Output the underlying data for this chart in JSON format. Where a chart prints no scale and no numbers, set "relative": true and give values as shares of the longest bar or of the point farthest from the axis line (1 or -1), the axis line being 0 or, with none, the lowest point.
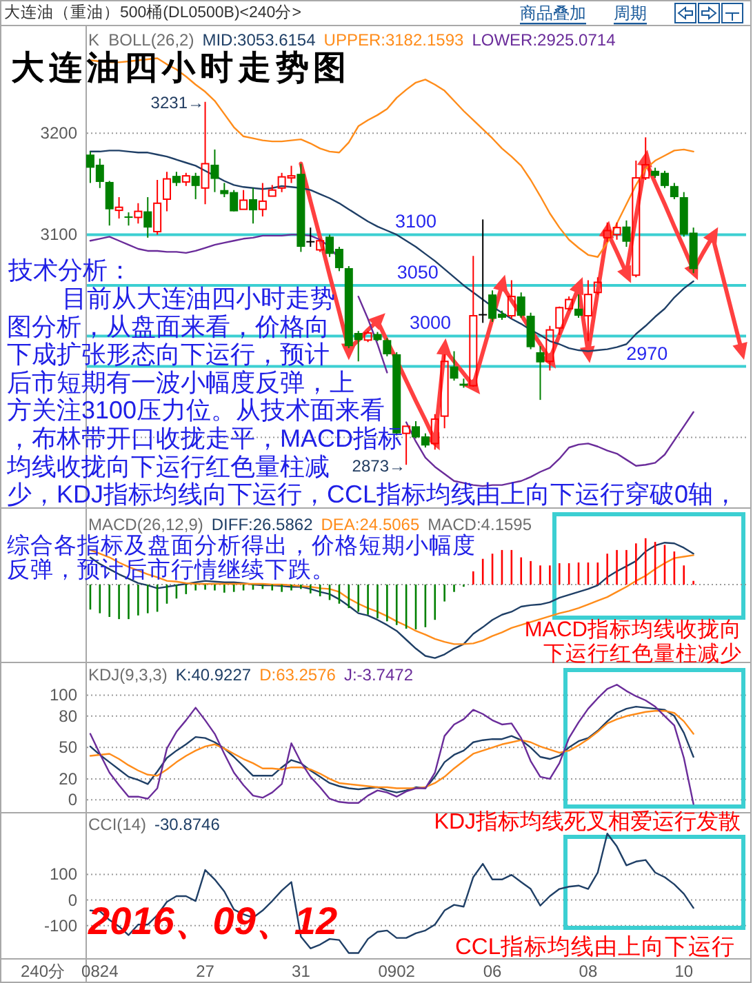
{
  "chart_data": [
    {
      "type": "candlestick",
      "title": "大连油（重油）500桶(DL0500B)<240分>",
      "subtitle": "大连油四小时走势图",
      "legend_title": "K  BOLL(26,2)",
      "legend": "top left",
      "tick_labels": "y",
      "grid": "y",
      "categories": [
        null,
        null,
        null,
        null,
        null,
        null,
        null,
        null,
        null,
        null,
        null,
        null,
        null,
        null,
        null,
        null,
        null,
        null,
        null,
        null,
        null,
        null,
        null,
        null,
        null,
        null,
        null,
        null,
        null,
        null,
        null,
        null,
        null,
        null,
        null,
        null,
        null,
        null,
        null,
        null,
        null,
        null,
        null,
        null,
        null,
        null,
        null,
        null,
        null,
        null,
        null,
        null,
        null,
        null,
        null,
        null,
        null,
        null,
        null,
        null,
        null,
        null,
        null,
        null,
        null,
        null,
        null,
        null,
        null
      ],
      "ylim": [
        2831,
        3307
      ],
      "yticks": [
        {
          "value": 2900,
          "label": null
        },
        {
          "value": 3000,
          "label": null
        },
        3100,
        3200
      ],
      "ohlc": [
        [
          3179,
          3182,
          3151,
          3166
        ],
        [
          3169,
          3175,
          3146,
          3152
        ],
        [
          3152,
          3153,
          3109,
          3125
        ],
        [
          3124,
          3137,
          3116,
          3127
        ],
        [
          3118,
          3122,
          3109,
          3117
        ],
        [
          3117,
          3131,
          3111,
          3123
        ],
        [
          3123,
          3137,
          3097,
          3107
        ],
        [
          3103,
          3154,
          3100,
          3131
        ],
        [
          3135,
          3162,
          3123,
          3155
        ],
        [
          3158,
          3162,
          3148,
          3151
        ],
        [
          3152,
          3161,
          3148,
          3158
        ],
        [
          3158,
          3161,
          3135,
          3148
        ],
        [
          3146,
          3231,
          3130,
          3170
        ],
        [
          3169,
          3184,
          3142,
          3155
        ],
        [
          3144,
          3151,
          3137,
          3140
        ],
        [
          3142,
          3144,
          3123,
          3123
        ],
        [
          3125,
          3144,
          3125,
          3134
        ],
        [
          3135,
          3146,
          3111,
          3124
        ],
        [
          3125,
          3151,
          3118,
          3133
        ],
        [
          3138,
          3149,
          3138,
          3144
        ],
        [
          3146,
          3161,
          3142,
          3157
        ],
        [
          3156,
          3168,
          3151,
          3158
        ],
        [
          3160,
          3170,
          3083,
          3088
        ],
        [
          3093,
          3107,
          3088,
          3093
        ],
        [
          3085,
          3096,
          3083,
          3094
        ],
        [
          3098,
          3100,
          3078,
          3081
        ],
        [
          3086,
          3088,
          3064,
          3067
        ],
        [
          3067,
          3069,
          2988,
          2990
        ],
        [
          3003,
          3005,
          2975,
          2996
        ],
        [
          2996,
          3005,
          2994,
          3003
        ],
        [
          3002,
          3004,
          2995,
          2996
        ],
        [
          2996,
          2998,
          2980,
          2982
        ],
        [
          2982,
          2984,
          2902,
          2904
        ],
        [
          2904,
          2911,
          2873,
          2911
        ],
        [
          2911,
          2916,
          2899,
          2900
        ],
        [
          2901,
          2904,
          2890,
          2892
        ],
        [
          2894,
          2923,
          2888,
          2918
        ],
        [
          2921,
          2982,
          2909,
          2975
        ],
        [
          2970,
          2985,
          2956,
          2958
        ],
        [
          2953,
          2958,
          2949,
          2951
        ],
        [
          2951,
          3079,
          2950,
          3020
        ],
        [
          3021,
          3115,
          3013,
          3021
        ],
        [
          3041,
          3045,
          3014,
          3017
        ],
        [
          3022,
          3025,
          3016,
          3018
        ],
        [
          3020,
          3055,
          3017,
          3039
        ],
        [
          3039,
          3043,
          3018,
          3020
        ],
        [
          3020,
          3023,
          2987,
          2989
        ],
        [
          2984,
          2990,
          2937,
          2974
        ],
        [
          2975,
          3010,
          2966,
          3006
        ],
        [
          3008,
          3029,
          3001,
          3028
        ],
        [
          3027,
          3039,
          3025,
          3036
        ],
        [
          3027,
          3041,
          3018,
          3020
        ],
        [
          3020,
          3055,
          2995,
          3041
        ],
        [
          3043,
          3058,
          3041,
          3053
        ],
        [
          3097,
          3112,
          3093,
          3104
        ],
        [
          3100,
          3112,
          3095,
          3107
        ],
        [
          3108,
          3114,
          3088,
          3093
        ],
        [
          3060,
          3173,
          3058,
          3156
        ],
        [
          3156,
          3196,
          3154,
          3169
        ],
        [
          3163,
          3166,
          3156,
          3158
        ],
        [
          3161,
          3163,
          3146,
          3148
        ],
        [
          3148,
          3151,
          3135,
          3137
        ],
        [
          3137,
          3142,
          3098,
          3100
        ],
        [
          3102,
          3107,
          3062,
          3066
        ],
        null,
        null,
        null,
        null,
        null
      ],
      "colors": [
        "#008000",
        "#008000",
        "#008000",
        "#ff0000",
        "#008000",
        "#ff0000",
        "#008000",
        "#ff0000",
        "#ff0000",
        "#008000",
        "#ff0000",
        "#008000",
        "#ff0000",
        "#008000",
        "#008000",
        "#008000",
        "#ff0000",
        "#008000",
        "#ff0000",
        "#ff0000",
        "#ff0000",
        "#ff0000",
        "#008000",
        "#000000",
        "#ff0000",
        "#008000",
        "#008000",
        "#008000",
        "#008000",
        "#ff0000",
        "#008000",
        "#008000",
        "#008000",
        "#ff0000",
        "#008000",
        "#008000",
        "#ff0000",
        "#ff0000",
        "#008000",
        "#008000",
        "#ff0000",
        "#000000",
        "#008000",
        "#008000",
        "#ff0000",
        "#008000",
        "#008000",
        "#008000",
        "#ff0000",
        "#ff0000",
        "#ff0000",
        "#008000",
        "#ff0000",
        "#ff0000",
        "#ff0000",
        "#ff0000",
        "#008000",
        "#ff0000",
        "#ff0000",
        "#008000",
        "#008000",
        "#008000",
        "#008000",
        "#008000",
        null,
        null,
        null,
        null,
        null
      ],
      "series": [
        {
          "type": "line",
          "color": "#ff4040",
          "values": [
            null,
            null,
            null,
            null,
            null,
            null,
            null,
            null,
            null,
            null,
            null,
            null,
            null,
            null,
            null,
            null,
            null,
            null,
            null,
            null,
            null,
            null,
            3170,
            3133,
            3097,
            3060,
            3024,
            2987,
            2996,
            3006,
            3015,
            2995,
            2976,
            2956,
            2936,
            2917,
            2897,
            2987,
            2975,
            2963,
            2951,
            2984,
            3017,
            3050,
            3035,
            3021,
            3006,
            2992,
            2977,
            3001,
            3024,
            3048,
            2984,
            3044,
            3103,
            3083,
            3062,
            3118,
            3173,
            3151,
            3130,
            3108,
            3087,
            3065,
            3082,
            3098,
            3061,
            3024,
            2987
          ]
        },
        {
          "type": "scatter",
          "color": "#ff4040",
          "marker": "triangle",
          "values": [
            null,
            null,
            null,
            null,
            null,
            null,
            null,
            null,
            null,
            null,
            null,
            null,
            null,
            null,
            null,
            null,
            null,
            null,
            null,
            null,
            null,
            null,
            null,
            null,
            null,
            null,
            null,
            2987,
            null,
            null,
            3015,
            null,
            null,
            null,
            null,
            null,
            2897,
            2987,
            null,
            null,
            2951,
            null,
            null,
            3050,
            null,
            null,
            null,
            null,
            2977,
            null,
            null,
            3048,
            2984,
            null,
            3103,
            null,
            3062,
            null,
            3173,
            null,
            null,
            null,
            null,
            3065,
            null,
            3098,
            null,
            null,
            2987
          ]
        },
        {
          "name": "MID:3053.6154",
          "type": "line",
          "color": "#1f3f66",
          "values": [
            3182,
            3182,
            3183,
            3183,
            3182,
            3181,
            3181,
            3179,
            3177,
            3174,
            3171,
            3168,
            3163,
            3158,
            3153,
            3149,
            3147,
            3146,
            3145,
            3146,
            3148,
            3147,
            3146,
            3144,
            3140,
            3136,
            3131,
            3125,
            3119,
            3113,
            3108,
            3104,
            3100,
            3094,
            3088,
            3081,
            3074,
            3066,
            3058,
            3050,
            3043,
            3036,
            3029,
            3023,
            3017,
            3012,
            3006,
            3001,
            2995,
            2992,
            2988,
            2986,
            2985,
            2986,
            2987,
            2989,
            2992,
            3002,
            3010,
            3019,
            3027,
            3038,
            3047,
            3054,
            null,
            null,
            null,
            null,
            null
          ]
        },
        {
          "name": "UPPER:3182.1593",
          "type": "line",
          "color": "#ff8c1a",
          "values": [
            3272,
            3271,
            3270,
            3270,
            3271,
            3272,
            3273,
            3274,
            3268,
            3263,
            3256,
            3248,
            3241,
            3232,
            3219,
            3206,
            3197,
            3195,
            3193,
            3192,
            3192,
            3193,
            3194,
            3190,
            3185,
            3182,
            3181,
            3191,
            3207,
            3213,
            3218,
            3224,
            3235,
            3243,
            3250,
            3253,
            3248,
            3242,
            3232,
            3222,
            3213,
            3204,
            3195,
            3185,
            3177,
            3168,
            3154,
            3138,
            3121,
            3107,
            3095,
            3087,
            3080,
            3078,
            3092,
            3111,
            3130,
            3149,
            3165,
            3173,
            3178,
            3183,
            3184,
            3182,
            null,
            null,
            null,
            null,
            null
          ]
        },
        {
          "name": "LOWER:2925.0714",
          "type": "line",
          "color": "#6a2c9a",
          "values": [
            3094,
            3096,
            3098,
            3094,
            3090,
            3086,
            3084,
            3084,
            3083,
            3083,
            3082,
            3084,
            3087,
            3090,
            3092,
            3094,
            3096,
            3097,
            3099,
            3099,
            3099,
            3100,
            3100,
            3099,
            3095,
            3088,
            3076,
            null,
            3039,
            3017,
            2992,
            2964,
            null,
            2915,
            2896,
            2880,
            2871,
            2864,
            2857,
            2855,
            2853,
            2852,
            2853,
            2853,
            2855,
            2857,
            2861,
            2866,
            2870,
            2879,
            2890,
            2893,
            2894,
            2891,
            2887,
            2884,
            2878,
            2872,
            2873,
            2875,
            2883,
            2897,
            2911,
            2925,
            null,
            null,
            null,
            null,
            null
          ]
        }
      ],
      "ref_lines": [
        {
          "axis": "y",
          "value": 3100,
          "label": "3100",
          "color": "#3ccfd2"
        },
        {
          "axis": "y",
          "value": 3050,
          "label": "3050",
          "color": "#3ccfd2"
        },
        {
          "axis": "y",
          "value": 3000,
          "label": "3000",
          "color": "#3ccfd2"
        },
        {
          "axis": "y",
          "value": 2970,
          "label": "2970",
          "color": "#3ccfd2"
        }
      ],
      "annotations": [
        "商品叠加",
        "周期",
        "3231→",
        "2873→",
        "技术分析：",
        "目前从大连油四小时走势图分析，从盘面来看，价格向下成扩张形态向下运行，预计后市短期有一波小幅度反弹，上方关注3100压力位。从技术面来看，布林带开口收拢走平，MACD指标均线收拢向下运行红色量柱减少，KDJ指标均线向下运行，CCL指标均线由上向下运行穿破0轴，"
      ]
    },
    {
      "type": "bar",
      "relative": true,
      "legend_title": "MACD(26,12,9)",
      "legend": "top left",
      "tick_labels": false,
      "categories": [
        null,
        null,
        null,
        null,
        null,
        null,
        null,
        null,
        null,
        null,
        null,
        null,
        null,
        null,
        null,
        null,
        null,
        null,
        null,
        null,
        null,
        null,
        null,
        null,
        null,
        null,
        null,
        null,
        null,
        null,
        null,
        null,
        null,
        null,
        null,
        null,
        null,
        null,
        null,
        null,
        null,
        null,
        null,
        null,
        null,
        null,
        null,
        null,
        null,
        null,
        null,
        null,
        null,
        null,
        null,
        null,
        null,
        null,
        null,
        null,
        null,
        null,
        null,
        null,
        null,
        null,
        null,
        null,
        null
      ],
      "series": [
        {
          "name": "DIFF:26.5862",
          "type": "line",
          "color": "#1f3f66",
          "values": [
            0.37,
            0.28,
            0.21,
            0.14,
            0.08,
            0.02,
            -0.01,
            -0.05,
            -0.03,
            -0.01,
            0.01,
            0.03,
            0.05,
            0.04,
            0.03,
            0.03,
            0.02,
            0,
            -0.01,
            -0.01,
            -0.02,
            -0.03,
            -0.03,
            -0.06,
            -0.1,
            -0.13,
            -0.2,
            -0.29,
            -0.39,
            -0.42,
            -0.48,
            -0.55,
            -0.63,
            -0.75,
            -0.87,
            -0.97,
            -1,
            -0.95,
            -0.87,
            -0.81,
            -0.67,
            -0.58,
            -0.48,
            -0.41,
            -0.37,
            -0.3,
            -0.28,
            -0.27,
            -0.24,
            -0.18,
            -0.14,
            -0.1,
            -0.06,
            -0.01,
            0.1,
            0.18,
            0.25,
            0.32,
            0.45,
            0.53,
            0.57,
            0.56,
            0.5,
            0.42,
            null,
            null,
            null,
            null,
            null
          ]
        },
        {
          "name": "DEA:24.5065",
          "type": "line",
          "color": "#ff8c1a",
          "values": [
            0.47,
            0.42,
            0.37,
            0.3,
            0.24,
            0.19,
            0.14,
            0.1,
            0.05,
            0.04,
            0.02,
            0.01,
            0.01,
            0.01,
            0.01,
            0.01,
            0.01,
            0.01,
            0.01,
            0,
            0,
            -0.01,
            -0.02,
            -0.03,
            -0.05,
            -0.06,
            -0.1,
            -0.19,
            -0.26,
            -0.32,
            -0.37,
            -0.43,
            -0.5,
            -0.56,
            -0.63,
            -0.68,
            -0.74,
            -0.78,
            -0.81,
            -0.81,
            -0.8,
            -0.76,
            -0.7,
            -0.65,
            -0.59,
            -0.55,
            -0.51,
            -0.47,
            -0.43,
            -0.39,
            -0.36,
            -0.32,
            -0.27,
            -0.22,
            -0.17,
            -0.1,
            -0.03,
            0.05,
            0.12,
            0.21,
            0.29,
            0.36,
            0.38,
            0.4,
            null,
            null,
            null,
            null,
            null
          ]
        },
        {
          "name": "MACD:4.1595",
          "values": [
            -0.34,
            -0.39,
            -0.44,
            -0.47,
            -0.47,
            -0.42,
            -0.39,
            -0.37,
            -0.26,
            -0.19,
            -0.13,
            -0.08,
            -0.07,
            -0.08,
            -0.11,
            -0.1,
            -0.08,
            -0.07,
            -0.06,
            -0.08,
            -0.1,
            -0.08,
            -0.06,
            -0.12,
            -0.16,
            -0.21,
            -0.26,
            -0.32,
            -0.37,
            -0.41,
            -0.46,
            -0.5,
            -0.55,
            -0.6,
            -0.61,
            -0.58,
            -0.48,
            -0.23,
            -0.1,
            -0.03,
            0.18,
            0.35,
            0.42,
            0.47,
            0.47,
            0.37,
            0.32,
            0.26,
            0.26,
            0.29,
            0.29,
            0.3,
            0.3,
            0.3,
            0.42,
            0.47,
            0.47,
            0.56,
            0.63,
            0.58,
            0.54,
            0.45,
            0.26,
            0.05,
            null,
            null,
            null,
            null,
            null
          ],
          "colors": [
            "#008000",
            "#008000",
            "#008000",
            "#008000",
            "#008000",
            "#008000",
            "#008000",
            "#008000",
            "#008000",
            "#008000",
            "#008000",
            "#008000",
            "#008000",
            "#008000",
            "#008000",
            "#008000",
            "#008000",
            "#008000",
            "#008000",
            "#008000",
            "#008000",
            "#008000",
            "#008000",
            "#008000",
            "#008000",
            "#008000",
            "#008000",
            "#008000",
            "#008000",
            "#008000",
            "#008000",
            "#008000",
            "#008000",
            "#008000",
            "#008000",
            "#008000",
            "#008000",
            "#008000",
            "#008000",
            "#008000",
            "#ff0000",
            "#ff0000",
            "#ff0000",
            "#ff0000",
            "#ff0000",
            "#ff0000",
            "#ff0000",
            "#ff0000",
            "#ff0000",
            "#ff0000",
            "#ff0000",
            "#ff0000",
            "#ff0000",
            "#ff0000",
            "#ff0000",
            "#ff0000",
            "#ff0000",
            "#ff0000",
            "#ff0000",
            "#ff0000",
            "#ff0000",
            "#ff0000",
            "#ff0000",
            "#ff0000",
            null,
            null,
            null,
            null,
            null
          ]
        }
      ],
      "ref_lines": [
        {
          "axis": "y",
          "value": 0,
          "color": "#9a9a9a",
          "line_style": "dotted"
        }
      ],
      "annotations": [
        "综合各指标及盘面分析得出，价格短期小幅度反弹，预计后市行情继续下跌。",
        "MACD指标均线收拢向下运行红色量柱减少"
      ]
    },
    {
      "type": "line",
      "legend_title": "KDJ(9,3,3)",
      "legend": "top left",
      "tick_labels": "y",
      "grid": "y",
      "categories": [
        null,
        null,
        null,
        null,
        null,
        null,
        null,
        null,
        null,
        null,
        null,
        null,
        null,
        null,
        null,
        null,
        null,
        null,
        null,
        null,
        null,
        null,
        null,
        null,
        null,
        null,
        null,
        null,
        null,
        null,
        null,
        null,
        null,
        null,
        null,
        null,
        null,
        null,
        null,
        null,
        null,
        null,
        null,
        null,
        null,
        null,
        null,
        null,
        null,
        null,
        null,
        null,
        null,
        null,
        null,
        null,
        null,
        null,
        null,
        null,
        null,
        null,
        null,
        null,
        null,
        null,
        null,
        null,
        null
      ],
      "ylim": [
        -11.7,
        131.9
      ],
      "yticks": [
        0,
        20,
        50,
        80,
        100
      ],
      "series": [
        {
          "name": "K:40.9227",
          "color": "#1f3f66",
          "values": [
            51,
            43,
            36,
            29,
            22,
            19,
            15,
            27,
            40,
            47,
            53,
            60,
            59,
            55,
            49,
            41,
            32,
            23,
            23,
            23,
            31,
            38,
            35,
            28,
            22,
            16,
            13,
            11,
            10,
            11,
            12,
            9,
            7,
            9,
            12,
            11,
            22,
            36,
            43,
            47,
            55,
            57,
            58,
            58,
            61,
            57,
            50,
            41,
            39,
            42,
            50,
            56,
            59,
            66,
            75,
            83,
            87,
            89,
            88,
            87,
            86,
            80,
            64,
            41,
            null,
            null,
            null,
            null,
            null
          ]
        },
        {
          "name": "D:63.2576",
          "color": "#ff8c1a",
          "values": [
            42,
            43,
            44,
            39,
            33,
            28,
            24,
            23,
            29,
            36,
            42,
            47,
            51,
            53,
            49,
            44,
            39,
            35,
            30,
            30,
            29,
            31,
            31,
            29,
            25,
            20,
            16,
            15,
            14,
            13,
            12,
            12,
            11,
            11,
            11,
            12,
            16,
            22,
            30,
            37,
            44,
            47,
            50,
            53,
            55,
            57,
            55,
            51,
            48,
            45,
            47,
            52,
            58,
            65,
            73,
            77,
            80,
            82,
            84,
            85,
            85,
            83,
            75,
            63,
            null,
            null,
            null,
            null,
            null
          ]
        },
        {
          "name": "J:-3.7472",
          "color": "#6a2c9a",
          "values": [
            63,
            44,
            26,
            14,
            3,
            3,
            1,
            11,
            49,
            65,
            76,
            88,
            76,
            63,
            44,
            26,
            14,
            4,
            2,
            7,
            15,
            54,
            36,
            22,
            12,
            1,
            -2,
            -3,
            -3,
            4,
            9,
            7,
            3,
            8,
            11,
            11,
            26,
            61,
            72,
            77,
            86,
            82,
            76,
            72,
            73,
            59,
            37,
            22,
            20,
            35,
            59,
            74,
            87,
            97,
            106,
            110,
            104,
            99,
            95,
            89,
            80,
            71,
            40,
            -4,
            null,
            null,
            null,
            null,
            null
          ]
        }
      ]
    },
    {
      "type": "line",
      "legend_title": "CCI(14)",
      "legend": "top left",
      "grid": "y",
      "xlabel": "240分",
      "categories": [
        null,
        "0824",
        null,
        null,
        null,
        null,
        null,
        null,
        null,
        null,
        null,
        null,
        "27",
        null,
        null,
        null,
        null,
        null,
        null,
        null,
        null,
        null,
        "31",
        null,
        null,
        null,
        null,
        null,
        null,
        null,
        null,
        null,
        "0902",
        null,
        null,
        null,
        null,
        null,
        null,
        null,
        null,
        null,
        "06",
        null,
        null,
        null,
        null,
        null,
        null,
        null,
        null,
        null,
        "08",
        null,
        null,
        null,
        null,
        null,
        null,
        null,
        null,
        null,
        "10",
        null,
        null,
        null,
        null,
        null,
        null
      ],
      "ylim": [
        -227,
        343
      ],
      "yticks": [
        -100,
        0,
        100
      ],
      "series": [
        {
          "name": "-30.8746",
          "color": "#1f3f66",
          "values": [
            -41,
            -44,
            -78,
            -103,
            -137,
            -96,
            -96,
            -59,
            -7,
            15,
            15,
            -4,
            117,
            80,
            33,
            -37,
            -56,
            -69,
            -41,
            -4,
            37,
            70,
            -143,
            -189,
            -174,
            -152,
            -156,
            -207,
            -207,
            -152,
            -124,
            -119,
            -148,
            -148,
            -130,
            -119,
            -96,
            -41,
            -19,
            -26,
            89,
            141,
            80,
            80,
            98,
            70,
            43,
            -22,
            15,
            43,
            52,
            56,
            43,
            107,
            259,
            209,
            135,
            150,
            156,
            107,
            89,
            61,
            24,
            -31,
            null,
            null,
            null,
            null,
            null
          ]
        }
      ],
      "annotations": [
        "KDJ指标均线死叉相爱运行发散",
        "CCL指标均线由上向下运行",
        "2016、09、12"
      ]
    }
  ]
}
